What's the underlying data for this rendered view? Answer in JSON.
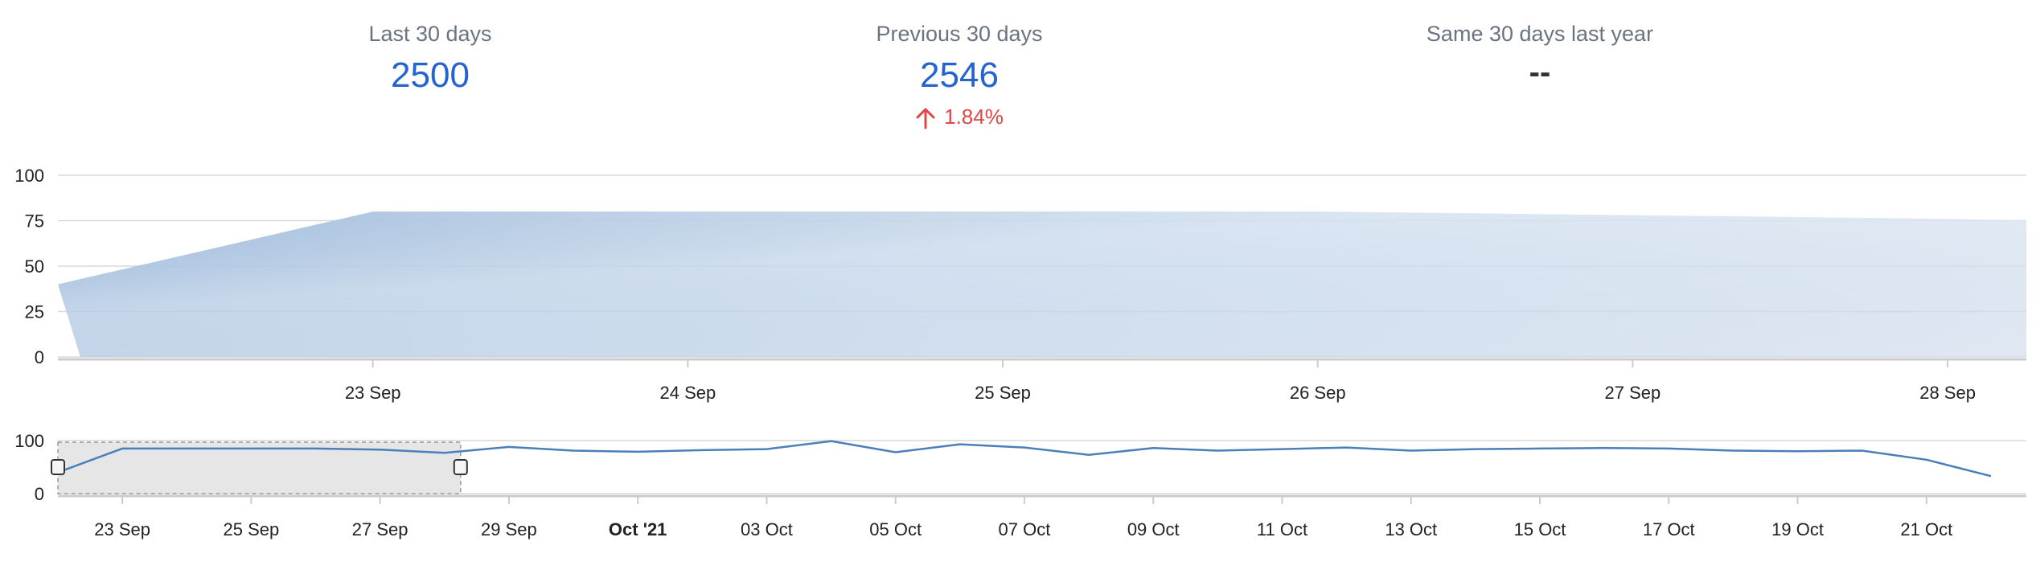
{
  "stats": {
    "last30": {
      "label": "Last 30 days",
      "value": "2500"
    },
    "previous30": {
      "label": "Previous 30 days",
      "value": "2546",
      "change": "1.84%"
    },
    "lastYear": {
      "label": "Same 30 days last year",
      "value": "--"
    }
  },
  "colors": {
    "accent": "#2563d0",
    "change_negative": "#e34545",
    "series": "#4a7fba",
    "grid": "#d9d9d9",
    "label": "#6b7280"
  },
  "chart_data": [
    {
      "type": "area",
      "title": "",
      "ylim": [
        0,
        100
      ],
      "y_ticks": [
        "0",
        "25",
        "50",
        "75",
        "100"
      ],
      "x_ticks": [
        "23 Sep",
        "24 Sep",
        "25 Sep",
        "26 Sep",
        "27 Sep",
        "28 Sep"
      ],
      "x_domain": [
        "2021-09-22",
        "2021-09-28T06:00"
      ],
      "points": [
        {
          "x": "2021-09-22",
          "y": 40
        },
        {
          "x": "2021-09-23",
          "y": 80
        },
        {
          "x": "2021-09-24",
          "y": 80
        },
        {
          "x": "2021-09-25",
          "y": 80
        },
        {
          "x": "2021-09-26",
          "y": 80
        },
        {
          "x": "2021-09-27",
          "y": 78
        },
        {
          "x": "2021-09-28",
          "y": 76
        },
        {
          "x": "2021-09-28T06:00",
          "y": 75
        }
      ],
      "grid": true,
      "legend": "none"
    },
    {
      "type": "line",
      "title": "",
      "ylim": [
        0,
        100
      ],
      "y_ticks": [
        "0",
        "100"
      ],
      "x_ticks": [
        "23 Sep",
        "25 Sep",
        "27 Sep",
        "29 Sep",
        "Oct '21",
        "03 Oct",
        "05 Oct",
        "07 Oct",
        "09 Oct",
        "11 Oct",
        "13 Oct",
        "15 Oct",
        "17 Oct",
        "19 Oct",
        "21 Oct"
      ],
      "x_domain": [
        "2021-09-22",
        "2021-10-22T12:00"
      ],
      "values": [
        40,
        85,
        85,
        85,
        85,
        83,
        77,
        88,
        81,
        79,
        82,
        84,
        99,
        78,
        93,
        87,
        73,
        86,
        81,
        84,
        87,
        81,
        84,
        85,
        86,
        85,
        81,
        80,
        81,
        64,
        33
      ],
      "x_start": "2021-09-22",
      "navigator_range": [
        "2021-09-22",
        "2021-09-28T06:00"
      ],
      "grid": true,
      "legend": "none"
    }
  ]
}
